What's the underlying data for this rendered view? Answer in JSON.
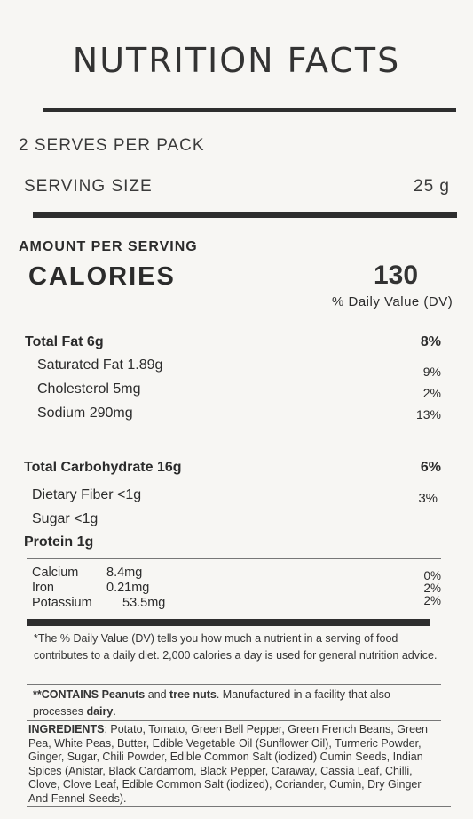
{
  "header": {
    "title": "NUTRITION FACTS"
  },
  "serving": {
    "per_pack": "2 SERVES PER PACK",
    "size_label": "SERVING SIZE",
    "size_value": "25 g"
  },
  "amount": {
    "heading": "AMOUNT PER SERVING",
    "calories_label": "CALORIES",
    "calories_value": "130",
    "dv_label": "% Daily Value (DV)"
  },
  "fat": {
    "total_label": "Total Fat 6g",
    "total_pct": "8%",
    "saturated_label": "Saturated Fat 1.89g",
    "saturated_pct": "9%",
    "cholesterol_label": "Cholesterol 5mg",
    "cholesterol_pct": "2%",
    "sodium_label": "Sodium 290mg",
    "sodium_pct": "13%"
  },
  "carb": {
    "total_label": "Total Carbohydrate 16g",
    "total_pct": "6%",
    "fiber_label": "Dietary Fiber <1g",
    "fiber_pct": "3%",
    "sugar_label": "Sugar <1g",
    "protein_label": "Protein 1g"
  },
  "minerals": [
    {
      "name": "Calcium",
      "amount": "8.4mg",
      "pct": "0%"
    },
    {
      "name": "Iron",
      "amount": "0.21mg",
      "pct": "2%"
    },
    {
      "name": "Potassium",
      "amount": "53.5mg",
      "pct": "2%"
    }
  ],
  "footnote": "*The % Daily Value (DV) tells you how much a nutrient in a serving of food contributes to a daily diet. 2,000 calories a day is used for general nutrition advice.",
  "allergen": {
    "prefix": "**CONTAINS",
    "peanuts": "Peanuts",
    "and": "and",
    "tree_nuts": "tree nuts",
    "middle": ". Manufactured in a facility that also processes",
    "dairy": "dairy",
    "end": "."
  },
  "ingredients": {
    "label": "INGREDIENTS",
    "text": ": Potato, Tomato, Green Bell Pepper, Green French Beans, Green Pea, White Peas, Butter, Edible Vegetable Oil (Sunflower Oil), Turmeric Powder, Ginger, Sugar, Chili Powder, Edible Common Salt (iodized) Cumin Seeds, Indian Spices (Anistar, Black Cardamom, Black Pepper, Caraway, Cassia Leaf, Chilli, Clove, Clove Leaf, Edible Common Salt (iodized), Coriander, Cumin, Dry Ginger And Fennel Seeds)."
  }
}
